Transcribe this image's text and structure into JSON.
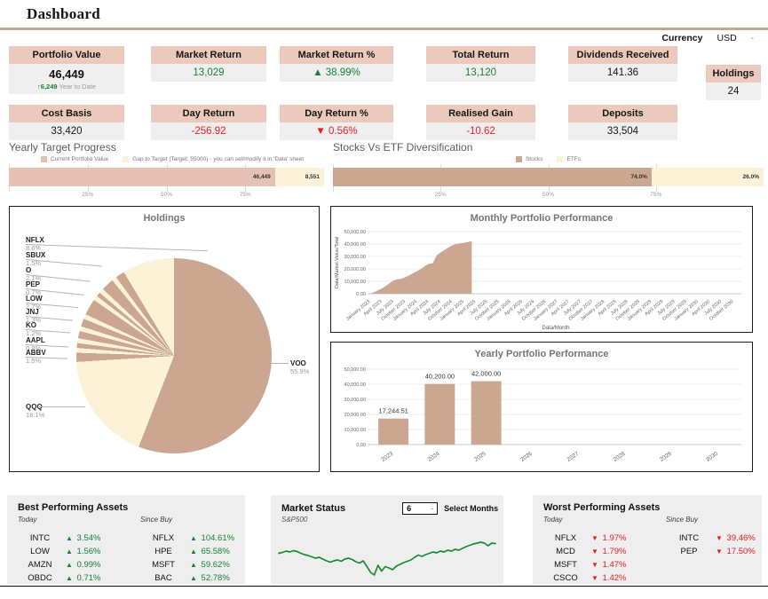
{
  "header": {
    "title": "Dashboard",
    "currency_label": "Currency",
    "currency_value": "USD",
    "currency_caret": "-"
  },
  "glyphs": {
    "up": "▲",
    "down": "▼"
  },
  "colors": {
    "tan": "#cba791",
    "rose": "#e4c1b3",
    "cream": "#fbf2d8",
    "card_header": "#ecc9bd",
    "card_value_bg": "#efefef",
    "green": "#188038",
    "red": "#ea1c21",
    "divider": "#c2a68e",
    "line_green": "#1a8a34"
  },
  "kpis": {
    "row1": [
      {
        "label": "Portfolio Value",
        "value": "46,449",
        "tone": "dark",
        "emph": true,
        "sub_delta": "↑6,249",
        "sub_text": "Year to Date"
      },
      {
        "label": "Market Return",
        "value": "13,029",
        "tone": "green"
      },
      {
        "label": "Market Return %",
        "value": "▲ 38.99%",
        "tone": "green"
      },
      {
        "label": "Total Return",
        "value": "13,120",
        "tone": "green"
      },
      {
        "label": "Dividends Received",
        "value": "141.36",
        "tone": "dark"
      }
    ],
    "row2": [
      {
        "label": "Cost Basis",
        "value": "33,420",
        "tone": "dark"
      },
      {
        "label": "Day Return",
        "value": "-256.92",
        "tone": "red"
      },
      {
        "label": "Day Return %",
        "value": "▼ 0.56%",
        "tone": "red"
      },
      {
        "label": "Realised Gain",
        "value": "-10.62",
        "tone": "red"
      },
      {
        "label": "Deposits",
        "value": "33,504",
        "tone": "dark"
      }
    ],
    "holdings_card": {
      "label": "Holdings",
      "value": "24"
    }
  },
  "chart_data": [
    {
      "id": "yearly_target_progress",
      "type": "bar",
      "orientation": "horizontal-stacked",
      "title": "Yearly Target Progress",
      "target": 55000,
      "segments": [
        {
          "name": "Current Portfolio Value",
          "value": 46449,
          "label": "46,449",
          "color_key": "rose"
        },
        {
          "name": "Gap to Target (Target: 55000) - you can set/modify it in 'Data' sheet",
          "value": 8551,
          "label": "8,551",
          "color_key": "cream"
        }
      ],
      "x_ticks": [
        {
          "pct": 25,
          "label": "25%"
        },
        {
          "pct": 50,
          "label": "50%"
        },
        {
          "pct": 75,
          "label": "75%"
        }
      ]
    },
    {
      "id": "stocks_vs_etf",
      "type": "bar",
      "orientation": "horizontal-stacked",
      "title": "Stocks Vs ETF Diversification",
      "segments": [
        {
          "name": "Stocks",
          "value": 74.0,
          "label": "74.0%",
          "color_key": "tan"
        },
        {
          "name": "ETFs",
          "value": 26.0,
          "label": "26.0%",
          "color_key": "cream"
        }
      ],
      "x_ticks": [
        {
          "pct": 25,
          "label": "25%"
        },
        {
          "pct": 50,
          "label": "50%"
        },
        {
          "pct": 75,
          "label": "75%"
        }
      ]
    },
    {
      "id": "holdings_pie",
      "type": "pie",
      "title": "Holdings",
      "slices": [
        {
          "ticker": "NFLX",
          "pct": "8.6%"
        },
        {
          "ticker": "SBUX",
          "pct": "1.5%"
        },
        {
          "ticker": "O",
          "pct": "2.1%"
        },
        {
          "ticker": "PEP",
          "pct": "0.7%"
        },
        {
          "ticker": "LOW",
          "pct": "2.7%"
        },
        {
          "ticker": "JNJ",
          "pct": "1.3%"
        },
        {
          "ticker": "KO",
          "pct": "1.2%"
        },
        {
          "ticker": "AAPL",
          "pct": "0.8%"
        },
        {
          "ticker": "ABBV",
          "pct": "1.5%"
        },
        {
          "ticker": "QQQ",
          "pct": "18.1%"
        },
        {
          "ticker": "VOO",
          "pct": "55.9%"
        }
      ],
      "segments_clockwise": [
        {
          "name": "VOO",
          "pct": 55.9,
          "color_key": "tan"
        },
        {
          "name": "QQQ",
          "pct": 18.1,
          "color_key": "cream"
        },
        {
          "name": "ABBV",
          "pct": 1.5,
          "color_key": "tan"
        },
        {
          "name": "other",
          "pct": 0.8,
          "color_key": "cream"
        },
        {
          "name": "AAPL",
          "pct": 0.8,
          "color_key": "tan"
        },
        {
          "name": "other",
          "pct": 0.8,
          "color_key": "cream"
        },
        {
          "name": "KO",
          "pct": 1.2,
          "color_key": "tan"
        },
        {
          "name": "other",
          "pct": 0.8,
          "color_key": "cream"
        },
        {
          "name": "JNJ",
          "pct": 1.3,
          "color_key": "tan"
        },
        {
          "name": "other",
          "pct": 0.8,
          "color_key": "cream"
        },
        {
          "name": "LOW",
          "pct": 2.7,
          "color_key": "tan"
        },
        {
          "name": "other",
          "pct": 0.8,
          "color_key": "cream"
        },
        {
          "name": "PEP",
          "pct": 0.7,
          "color_key": "tan"
        },
        {
          "name": "other",
          "pct": 0.8,
          "color_key": "cream"
        },
        {
          "name": "O",
          "pct": 2.1,
          "color_key": "tan"
        },
        {
          "name": "other",
          "pct": 0.8,
          "color_key": "cream"
        },
        {
          "name": "SBUX",
          "pct": 1.5,
          "color_key": "tan"
        },
        {
          "name": "NFLX",
          "pct": 8.6,
          "color_key": "cream"
        }
      ]
    },
    {
      "id": "monthly_portfolio_performance",
      "type": "area",
      "title": "Monthly Portfolio Performance",
      "xlabel": "Data/Month",
      "ylabel": "Data/Market Value/Total",
      "ylim": [
        0,
        50000
      ],
      "y_ticks": [
        "0.00",
        "10,000.00",
        "20,000.00",
        "30,000.00",
        "40,000.00",
        "50,000.00"
      ],
      "start_month": "January 2023",
      "total_months": 96,
      "x_tick_labels": [
        "January 2023",
        "April 2023",
        "July 2023",
        "October 2023",
        "January 2024",
        "April 2024",
        "July 2024",
        "October 2024",
        "January 2025",
        "April 2025",
        "July 2025",
        "October 2025",
        "January 2026",
        "April 2026",
        "July 2026",
        "October 2026",
        "January 2027",
        "April 2027",
        "July 2027",
        "October 2027",
        "January 2028",
        "April 2028",
        "July 2028",
        "October 2028",
        "January 2029",
        "April 2029",
        "July 2029",
        "October 2029",
        "January 2030",
        "April 2030",
        "July 2030",
        "October 2030"
      ],
      "values_monthly": [
        200,
        1200,
        2800,
        4300,
        6300,
        8600,
        10800,
        11600,
        12100,
        13400,
        14800,
        16600,
        18200,
        20100,
        22300,
        24100,
        24600,
        30800,
        33200,
        35100,
        37200,
        39000,
        40100,
        40600,
        41000,
        41600,
        42300
      ]
    },
    {
      "id": "yearly_portfolio_performance",
      "type": "bar",
      "title": "Yearly Portfolio Performance",
      "categories": [
        "2023",
        "2024",
        "2025",
        "2026",
        "2027",
        "2028",
        "2029",
        "2030"
      ],
      "values": [
        17244.51,
        40200,
        42000,
        0,
        0,
        0,
        0,
        0
      ],
      "bar_labels": [
        "17,244.51",
        "40,200.00",
        "42,000.00",
        "",
        "",
        "",
        "",
        ""
      ],
      "ylim": [
        0,
        50000
      ],
      "y_ticks": [
        "0.00",
        "10,000.00",
        "20,000.00",
        "30,000.00",
        "40,000.00",
        "50,000.00"
      ]
    },
    {
      "id": "sp500_line",
      "type": "line",
      "series": "S&P500",
      "points_rel": [
        0.55,
        0.57,
        0.6,
        0.58,
        0.61,
        0.59,
        0.55,
        0.52,
        0.5,
        0.47,
        0.44,
        0.46,
        0.42,
        0.38,
        0.35,
        0.38,
        0.4,
        0.37,
        0.42,
        0.44,
        0.41,
        0.36,
        0.33,
        0.38,
        0.25,
        0.12,
        0.06,
        0.28,
        0.15,
        0.25,
        0.22,
        0.18,
        0.26,
        0.3,
        0.34,
        0.37,
        0.4,
        0.46,
        0.51,
        0.48,
        0.52,
        0.55,
        0.58,
        0.56,
        0.6,
        0.58,
        0.62,
        0.6,
        0.64,
        0.62,
        0.66,
        0.7,
        0.73,
        0.76,
        0.78,
        0.8,
        0.78,
        0.72,
        0.78,
        0.77
      ]
    }
  ],
  "best_assets": {
    "title": "Best Performing Assets",
    "today_header": "Today",
    "sincebuy_header": "Since Buy",
    "today": [
      {
        "ticker": "INTC",
        "change": "3.54%",
        "dir": "up"
      },
      {
        "ticker": "LOW",
        "change": "1.56%",
        "dir": "up"
      },
      {
        "ticker": "AMZN",
        "change": "0.99%",
        "dir": "up"
      },
      {
        "ticker": "OBDC",
        "change": "0.71%",
        "dir": "up"
      }
    ],
    "since_buy": [
      {
        "ticker": "NFLX",
        "change": "104.61%",
        "dir": "up"
      },
      {
        "ticker": "HPE",
        "change": "65.58%",
        "dir": "up"
      },
      {
        "ticker": "MSFT",
        "change": "59.62%",
        "dir": "up"
      },
      {
        "ticker": "BAC",
        "change": "52.78%",
        "dir": "up"
      }
    ]
  },
  "market_status": {
    "title": "Market Status",
    "subtitle": "S&P500",
    "select_value": "6",
    "select_caret": "-",
    "select_label": "Select Months"
  },
  "worst_assets": {
    "title": "Worst Performing Assets",
    "today_header": "Today",
    "sincebuy_header": "Since Buy",
    "today": [
      {
        "ticker": "NFLX",
        "change": "1.97%",
        "dir": "down"
      },
      {
        "ticker": "MCD",
        "change": "1.79%",
        "dir": "down"
      },
      {
        "ticker": "MSFT",
        "change": "1.47%",
        "dir": "down"
      },
      {
        "ticker": "CSCO",
        "change": "1.42%",
        "dir": "down"
      }
    ],
    "since_buy": [
      {
        "ticker": "INTC",
        "change": "39.46%",
        "dir": "down"
      },
      {
        "ticker": "PEP",
        "change": "17.50%",
        "dir": "down"
      }
    ]
  }
}
